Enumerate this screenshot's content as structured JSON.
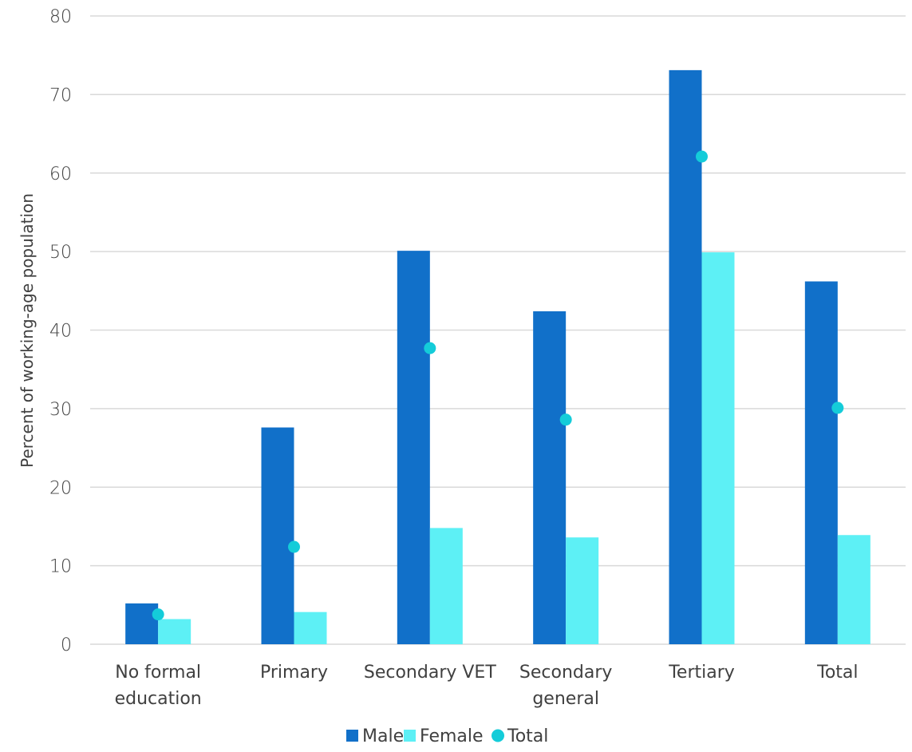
{
  "chart_data": {
    "type": "bar",
    "categories": [
      [
        "No formal",
        "education"
      ],
      [
        "Primary"
      ],
      [
        "Secondary VET"
      ],
      [
        "Secondary",
        "general"
      ],
      [
        "Tertiary"
      ],
      [
        "Total"
      ]
    ],
    "series": [
      {
        "name": "Male",
        "kind": "bar",
        "color": "#1170c9",
        "values": [
          5.2,
          27.6,
          50.1,
          42.4,
          73.1,
          46.2
        ]
      },
      {
        "name": "Female",
        "kind": "bar",
        "color": "#5df0f5",
        "values": [
          3.2,
          4.1,
          14.8,
          13.6,
          49.9,
          13.9
        ]
      },
      {
        "name": "Total",
        "kind": "dot",
        "color": "#14ccd9",
        "values": [
          3.8,
          12.4,
          37.7,
          28.6,
          62.1,
          30.1
        ]
      }
    ],
    "ylabel": "Percent of working-age population",
    "xlabel": "",
    "ylim": [
      0,
      80
    ],
    "yticks": [
      0,
      10,
      20,
      30,
      40,
      50,
      60,
      70,
      80
    ],
    "grid": true,
    "legend_position": "bottom"
  }
}
